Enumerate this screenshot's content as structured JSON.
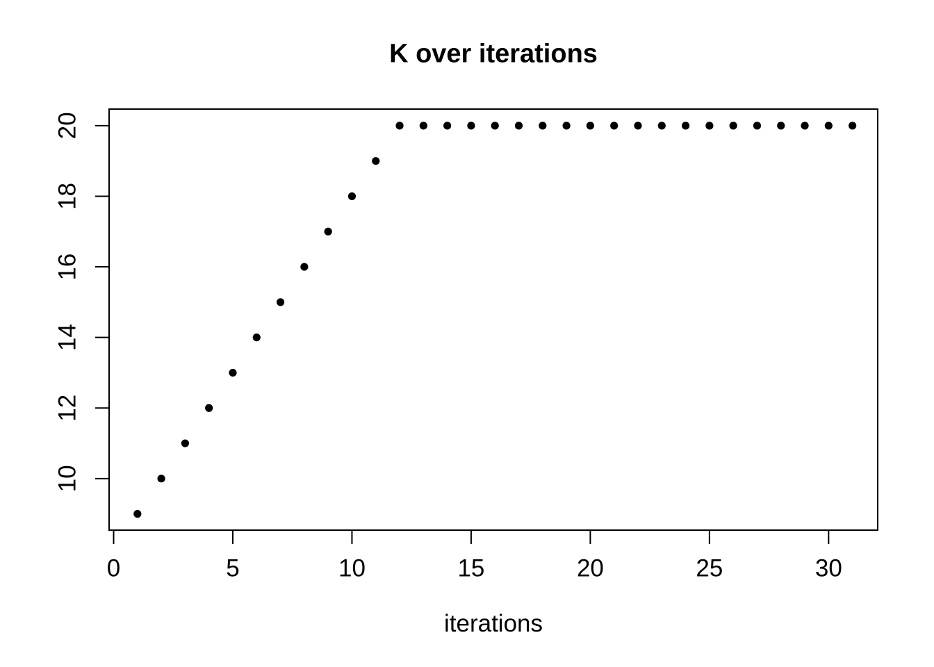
{
  "title": "K over iterations",
  "xlabel": "iterations",
  "colors": {
    "foreground": "#000000",
    "background": "#ffffff"
  },
  "chart_data": {
    "type": "scatter",
    "title": "K over iterations",
    "xlabel": "iterations",
    "ylabel": "",
    "x": [
      1,
      2,
      3,
      4,
      5,
      6,
      7,
      8,
      9,
      10,
      11,
      12,
      13,
      14,
      15,
      16,
      17,
      18,
      19,
      20,
      21,
      22,
      23,
      24,
      25,
      26,
      27,
      28,
      29,
      30,
      31
    ],
    "y": [
      9,
      10,
      11,
      12,
      13,
      14,
      15,
      16,
      17,
      18,
      19,
      20,
      20,
      20,
      20,
      20,
      20,
      20,
      20,
      20,
      20,
      20,
      20,
      20,
      20,
      20,
      20,
      20,
      20,
      20,
      20
    ],
    "x_ticks": [
      0,
      5,
      10,
      15,
      20,
      25,
      30
    ],
    "y_ticks": [
      10,
      12,
      14,
      16,
      18,
      20
    ],
    "xlim": [
      -0.19,
      32.06
    ],
    "ylim": [
      8.54,
      20.47
    ],
    "grid": false,
    "legend": null,
    "marker": "filled-circle",
    "point_color": "#000000"
  }
}
